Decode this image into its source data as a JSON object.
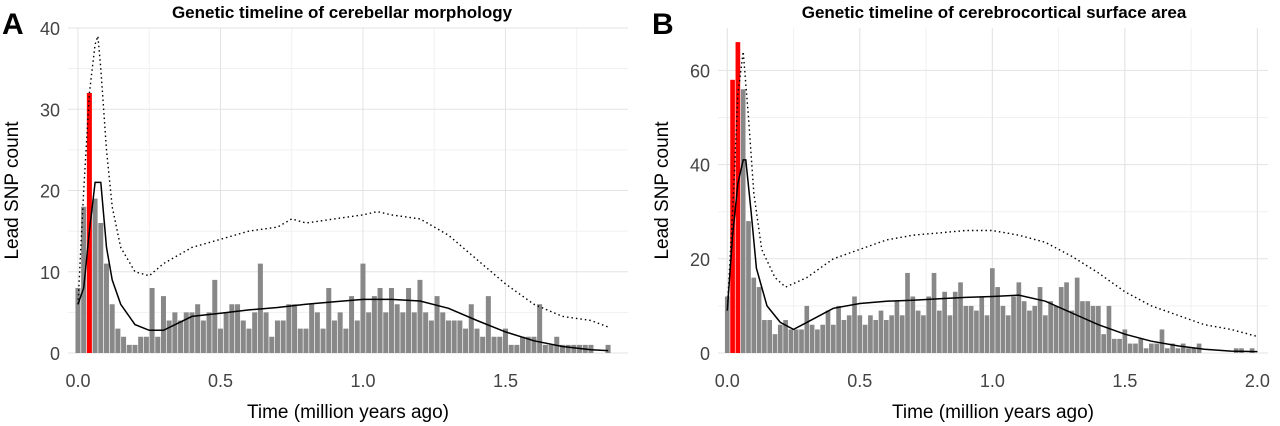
{
  "chart_data": [
    {
      "type": "bar",
      "panel": "A",
      "title": "Genetic timeline of cerebellar morphology",
      "xlabel": "Time (million years ago)",
      "ylabel": "Lead SNP count",
      "xlim": [
        -0.035,
        1.93
      ],
      "ylim": [
        0,
        40
      ],
      "xticks": [
        "0.0",
        "0.5",
        "1.0",
        "1.5"
      ],
      "yticks": [
        "0",
        "10",
        "20",
        "30",
        "40"
      ],
      "bin_width": 0.02,
      "highlight_color": "#ff0000",
      "bar_color": "#888888",
      "bars": [
        {
          "x": 0.0,
          "y": 8
        },
        {
          "x": 0.02,
          "y": 18
        },
        {
          "x": 0.04,
          "y": 32,
          "highlight": true
        },
        {
          "x": 0.06,
          "y": 19
        },
        {
          "x": 0.08,
          "y": 16
        },
        {
          "x": 0.1,
          "y": 11
        },
        {
          "x": 0.12,
          "y": 6
        },
        {
          "x": 0.14,
          "y": 3
        },
        {
          "x": 0.16,
          "y": 2
        },
        {
          "x": 0.18,
          "y": 1
        },
        {
          "x": 0.2,
          "y": 1
        },
        {
          "x": 0.22,
          "y": 2
        },
        {
          "x": 0.24,
          "y": 2
        },
        {
          "x": 0.26,
          "y": 8
        },
        {
          "x": 0.28,
          "y": 2
        },
        {
          "x": 0.3,
          "y": 7
        },
        {
          "x": 0.32,
          "y": 4
        },
        {
          "x": 0.34,
          "y": 5
        },
        {
          "x": 0.36,
          "y": 4
        },
        {
          "x": 0.38,
          "y": 5
        },
        {
          "x": 0.4,
          "y": 5
        },
        {
          "x": 0.42,
          "y": 6
        },
        {
          "x": 0.44,
          "y": 4
        },
        {
          "x": 0.46,
          "y": 5
        },
        {
          "x": 0.48,
          "y": 9
        },
        {
          "x": 0.5,
          "y": 3
        },
        {
          "x": 0.52,
          "y": 5
        },
        {
          "x": 0.54,
          "y": 6
        },
        {
          "x": 0.56,
          "y": 6
        },
        {
          "x": 0.58,
          "y": 4
        },
        {
          "x": 0.6,
          "y": 3
        },
        {
          "x": 0.62,
          "y": 5
        },
        {
          "x": 0.64,
          "y": 11
        },
        {
          "x": 0.66,
          "y": 5
        },
        {
          "x": 0.68,
          "y": 2
        },
        {
          "x": 0.7,
          "y": 4
        },
        {
          "x": 0.72,
          "y": 4
        },
        {
          "x": 0.74,
          "y": 6
        },
        {
          "x": 0.76,
          "y": 6
        },
        {
          "x": 0.78,
          "y": 3
        },
        {
          "x": 0.8,
          "y": 3
        },
        {
          "x": 0.82,
          "y": 6
        },
        {
          "x": 0.84,
          "y": 5
        },
        {
          "x": 0.86,
          "y": 3
        },
        {
          "x": 0.88,
          "y": 8
        },
        {
          "x": 0.9,
          "y": 4
        },
        {
          "x": 0.92,
          "y": 5
        },
        {
          "x": 0.94,
          "y": 3
        },
        {
          "x": 0.96,
          "y": 7
        },
        {
          "x": 0.98,
          "y": 4
        },
        {
          "x": 1.0,
          "y": 11
        },
        {
          "x": 1.02,
          "y": 5
        },
        {
          "x": 1.04,
          "y": 7
        },
        {
          "x": 1.06,
          "y": 8
        },
        {
          "x": 1.08,
          "y": 5
        },
        {
          "x": 1.1,
          "y": 8
        },
        {
          "x": 1.12,
          "y": 6
        },
        {
          "x": 1.14,
          "y": 5
        },
        {
          "x": 1.16,
          "y": 8
        },
        {
          "x": 1.18,
          "y": 5
        },
        {
          "x": 1.2,
          "y": 9
        },
        {
          "x": 1.22,
          "y": 5
        },
        {
          "x": 1.24,
          "y": 4
        },
        {
          "x": 1.26,
          "y": 7
        },
        {
          "x": 1.28,
          "y": 5
        },
        {
          "x": 1.3,
          "y": 4
        },
        {
          "x": 1.32,
          "y": 4
        },
        {
          "x": 1.34,
          "y": 4
        },
        {
          "x": 1.36,
          "y": 3
        },
        {
          "x": 1.38,
          "y": 6
        },
        {
          "x": 1.4,
          "y": 3
        },
        {
          "x": 1.42,
          "y": 2
        },
        {
          "x": 1.44,
          "y": 7
        },
        {
          "x": 1.46,
          "y": 2
        },
        {
          "x": 1.48,
          "y": 2
        },
        {
          "x": 1.5,
          "y": 3
        },
        {
          "x": 1.52,
          "y": 1
        },
        {
          "x": 1.54,
          "y": 1
        },
        {
          "x": 1.56,
          "y": 2
        },
        {
          "x": 1.58,
          "y": 2
        },
        {
          "x": 1.6,
          "y": 2
        },
        {
          "x": 1.62,
          "y": 6
        },
        {
          "x": 1.64,
          "y": 1
        },
        {
          "x": 1.66,
          "y": 1
        },
        {
          "x": 1.68,
          "y": 2
        },
        {
          "x": 1.7,
          "y": 1
        },
        {
          "x": 1.72,
          "y": 1
        },
        {
          "x": 1.74,
          "y": 1
        },
        {
          "x": 1.76,
          "y": 1
        },
        {
          "x": 1.78,
          "y": 1
        },
        {
          "x": 1.8,
          "y": 1
        },
        {
          "x": 1.86,
          "y": 1
        }
      ],
      "smooth_line": [
        [
          0.0,
          6
        ],
        [
          0.02,
          8
        ],
        [
          0.04,
          15
        ],
        [
          0.06,
          21
        ],
        [
          0.08,
          21
        ],
        [
          0.1,
          13
        ],
        [
          0.12,
          9
        ],
        [
          0.15,
          6
        ],
        [
          0.2,
          3.5
        ],
        [
          0.25,
          2.8
        ],
        [
          0.3,
          2.8
        ],
        [
          0.4,
          4.5
        ],
        [
          0.5,
          4.9
        ],
        [
          0.6,
          5.3
        ],
        [
          0.7,
          5.6
        ],
        [
          0.8,
          6
        ],
        [
          0.9,
          6.3
        ],
        [
          1.0,
          6.6
        ],
        [
          1.1,
          6.6
        ],
        [
          1.2,
          6.4
        ],
        [
          1.3,
          5.5
        ],
        [
          1.4,
          4
        ],
        [
          1.5,
          2.6
        ],
        [
          1.6,
          1.5
        ],
        [
          1.7,
          0.8
        ],
        [
          1.8,
          0.4
        ],
        [
          1.86,
          0.3
        ]
      ],
      "dotted_line": [
        [
          0.0,
          6
        ],
        [
          0.02,
          20
        ],
        [
          0.04,
          32
        ],
        [
          0.06,
          38
        ],
        [
          0.07,
          39
        ],
        [
          0.08,
          35
        ],
        [
          0.1,
          25
        ],
        [
          0.12,
          18
        ],
        [
          0.15,
          13
        ],
        [
          0.2,
          10
        ],
        [
          0.25,
          9.5
        ],
        [
          0.3,
          11
        ],
        [
          0.4,
          13
        ],
        [
          0.5,
          14
        ],
        [
          0.6,
          15
        ],
        [
          0.7,
          15.5
        ],
        [
          0.75,
          16.5
        ],
        [
          0.8,
          16
        ],
        [
          0.9,
          16.5
        ],
        [
          1.0,
          17
        ],
        [
          1.05,
          17.4
        ],
        [
          1.1,
          17
        ],
        [
          1.2,
          16.5
        ],
        [
          1.3,
          14.5
        ],
        [
          1.4,
          11.5
        ],
        [
          1.5,
          8.5
        ],
        [
          1.6,
          6
        ],
        [
          1.7,
          4.5
        ],
        [
          1.8,
          4
        ],
        [
          1.86,
          3.2
        ]
      ]
    },
    {
      "type": "bar",
      "panel": "B",
      "title": "Genetic timeline of cerebrocortical surface area",
      "xlabel": "Time (million years ago)",
      "ylabel": "Lead SNP count",
      "xlim": [
        -0.035,
        2.04
      ],
      "ylim": [
        0,
        69
      ],
      "xticks": [
        "0.0",
        "0.5",
        "1.0",
        "1.5",
        "2.0"
      ],
      "yticks": [
        "0",
        "20",
        "40",
        "60"
      ],
      "bin_width": 0.02,
      "highlight_color": "#ff0000",
      "bar_color": "#888888",
      "bars": [
        {
          "x": 0.0,
          "y": 12
        },
        {
          "x": 0.02,
          "y": 58,
          "highlight": true
        },
        {
          "x": 0.04,
          "y": 66,
          "highlight": true
        },
        {
          "x": 0.06,
          "y": 56
        },
        {
          "x": 0.08,
          "y": 28
        },
        {
          "x": 0.1,
          "y": 16
        },
        {
          "x": 0.12,
          "y": 14
        },
        {
          "x": 0.14,
          "y": 7
        },
        {
          "x": 0.16,
          "y": 7
        },
        {
          "x": 0.18,
          "y": 4
        },
        {
          "x": 0.2,
          "y": 6
        },
        {
          "x": 0.22,
          "y": 7
        },
        {
          "x": 0.24,
          "y": 5
        },
        {
          "x": 0.26,
          "y": 5
        },
        {
          "x": 0.28,
          "y": 5
        },
        {
          "x": 0.3,
          "y": 10
        },
        {
          "x": 0.32,
          "y": 6
        },
        {
          "x": 0.34,
          "y": 5
        },
        {
          "x": 0.36,
          "y": 6
        },
        {
          "x": 0.38,
          "y": 9
        },
        {
          "x": 0.4,
          "y": 6
        },
        {
          "x": 0.42,
          "y": 10
        },
        {
          "x": 0.44,
          "y": 7
        },
        {
          "x": 0.46,
          "y": 8
        },
        {
          "x": 0.48,
          "y": 12
        },
        {
          "x": 0.5,
          "y": 8
        },
        {
          "x": 0.52,
          "y": 6
        },
        {
          "x": 0.54,
          "y": 8
        },
        {
          "x": 0.56,
          "y": 7
        },
        {
          "x": 0.58,
          "y": 9
        },
        {
          "x": 0.6,
          "y": 7
        },
        {
          "x": 0.62,
          "y": 8
        },
        {
          "x": 0.64,
          "y": 11
        },
        {
          "x": 0.66,
          "y": 8
        },
        {
          "x": 0.68,
          "y": 17
        },
        {
          "x": 0.7,
          "y": 12
        },
        {
          "x": 0.72,
          "y": 9
        },
        {
          "x": 0.74,
          "y": 8
        },
        {
          "x": 0.76,
          "y": 12
        },
        {
          "x": 0.78,
          "y": 17
        },
        {
          "x": 0.8,
          "y": 9
        },
        {
          "x": 0.82,
          "y": 13
        },
        {
          "x": 0.84,
          "y": 8
        },
        {
          "x": 0.86,
          "y": 13
        },
        {
          "x": 0.88,
          "y": 15
        },
        {
          "x": 0.9,
          "y": 10
        },
        {
          "x": 0.92,
          "y": 10
        },
        {
          "x": 0.94,
          "y": 9
        },
        {
          "x": 0.96,
          "y": 12
        },
        {
          "x": 0.98,
          "y": 8
        },
        {
          "x": 1.0,
          "y": 18
        },
        {
          "x": 1.02,
          "y": 14
        },
        {
          "x": 1.04,
          "y": 10
        },
        {
          "x": 1.06,
          "y": 8
        },
        {
          "x": 1.08,
          "y": 12
        },
        {
          "x": 1.1,
          "y": 15
        },
        {
          "x": 1.12,
          "y": 11
        },
        {
          "x": 1.14,
          "y": 9
        },
        {
          "x": 1.16,
          "y": 10
        },
        {
          "x": 1.18,
          "y": 14
        },
        {
          "x": 1.2,
          "y": 8
        },
        {
          "x": 1.22,
          "y": 11
        },
        {
          "x": 1.24,
          "y": 10
        },
        {
          "x": 1.26,
          "y": 14
        },
        {
          "x": 1.28,
          "y": 15
        },
        {
          "x": 1.3,
          "y": 9
        },
        {
          "x": 1.32,
          "y": 16
        },
        {
          "x": 1.34,
          "y": 11
        },
        {
          "x": 1.36,
          "y": 11
        },
        {
          "x": 1.38,
          "y": 10
        },
        {
          "x": 1.4,
          "y": 10
        },
        {
          "x": 1.42,
          "y": 4
        },
        {
          "x": 1.44,
          "y": 10
        },
        {
          "x": 1.46,
          "y": 3
        },
        {
          "x": 1.48,
          "y": 3
        },
        {
          "x": 1.5,
          "y": 5
        },
        {
          "x": 1.52,
          "y": 2
        },
        {
          "x": 1.54,
          "y": 2
        },
        {
          "x": 1.56,
          "y": 3
        },
        {
          "x": 1.58,
          "y": 1
        },
        {
          "x": 1.6,
          "y": 2
        },
        {
          "x": 1.62,
          "y": 2
        },
        {
          "x": 1.64,
          "y": 5
        },
        {
          "x": 1.66,
          "y": 1
        },
        {
          "x": 1.68,
          "y": 2
        },
        {
          "x": 1.7,
          "y": 1
        },
        {
          "x": 1.72,
          "y": 2
        },
        {
          "x": 1.74,
          "y": 1
        },
        {
          "x": 1.76,
          "y": 1
        },
        {
          "x": 1.78,
          "y": 2
        },
        {
          "x": 1.92,
          "y": 1
        },
        {
          "x": 1.94,
          "y": 1
        },
        {
          "x": 1.98,
          "y": 1
        }
      ],
      "smooth_line": [
        [
          0.0,
          9
        ],
        [
          0.02,
          25
        ],
        [
          0.04,
          36
        ],
        [
          0.06,
          41
        ],
        [
          0.07,
          41
        ],
        [
          0.09,
          30
        ],
        [
          0.11,
          18
        ],
        [
          0.15,
          10
        ],
        [
          0.2,
          6.5
        ],
        [
          0.25,
          5
        ],
        [
          0.3,
          6.5
        ],
        [
          0.4,
          9.5
        ],
        [
          0.5,
          10.5
        ],
        [
          0.6,
          11
        ],
        [
          0.7,
          11.2
        ],
        [
          0.8,
          11.5
        ],
        [
          0.9,
          11.8
        ],
        [
          1.0,
          12
        ],
        [
          1.1,
          12.3
        ],
        [
          1.2,
          11
        ],
        [
          1.3,
          8.5
        ],
        [
          1.4,
          6
        ],
        [
          1.5,
          4
        ],
        [
          1.6,
          2.5
        ],
        [
          1.7,
          1.5
        ],
        [
          1.8,
          0.8
        ],
        [
          1.9,
          0.4
        ],
        [
          2.0,
          0.3
        ]
      ],
      "dotted_line": [
        [
          0.0,
          9
        ],
        [
          0.02,
          30
        ],
        [
          0.04,
          55
        ],
        [
          0.06,
          64
        ],
        [
          0.08,
          50
        ],
        [
          0.1,
          34
        ],
        [
          0.13,
          22
        ],
        [
          0.18,
          16
        ],
        [
          0.22,
          14
        ],
        [
          0.3,
          16
        ],
        [
          0.4,
          20
        ],
        [
          0.5,
          22
        ],
        [
          0.6,
          24
        ],
        [
          0.7,
          25
        ],
        [
          0.8,
          25.5
        ],
        [
          0.9,
          26
        ],
        [
          1.0,
          26
        ],
        [
          1.1,
          25
        ],
        [
          1.2,
          23.5
        ],
        [
          1.3,
          20.5
        ],
        [
          1.4,
          17
        ],
        [
          1.5,
          13
        ],
        [
          1.6,
          10
        ],
        [
          1.7,
          8
        ],
        [
          1.8,
          6
        ],
        [
          1.9,
          5
        ],
        [
          2.0,
          3.5
        ]
      ]
    }
  ]
}
